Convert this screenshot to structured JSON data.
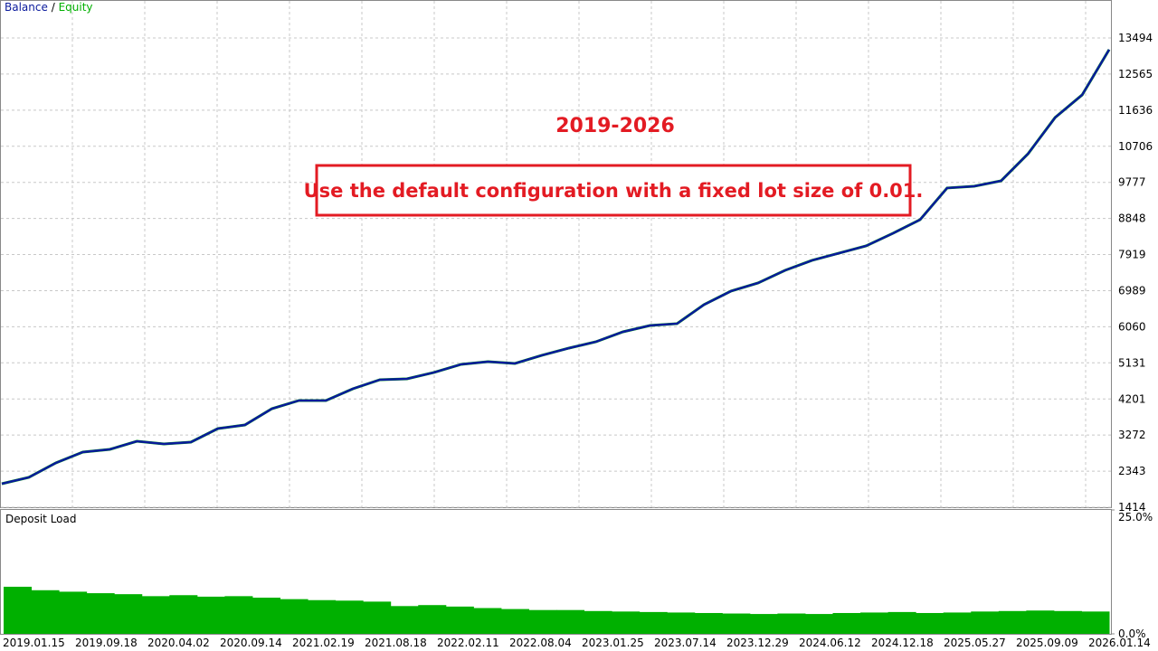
{
  "chart_data": [
    {
      "type": "line",
      "legend_separator": "/",
      "annotations": [
        "2019-2026",
        "Use the default configuration with a fixed lot size of 0.01."
      ],
      "xlabels": [
        "2019.01.15",
        "2019.09.18",
        "2020.04.02",
        "2020.09.14",
        "2021.02.19",
        "2021.08.18",
        "2022.02.11",
        "2022.08.04",
        "2023.01.25",
        "2023.07.14",
        "2023.12.29",
        "2024.06.12",
        "2024.12.18",
        "2025.05.27",
        "2025.09.09",
        "2026.01.14"
      ],
      "ylim": [
        1414,
        14472
      ],
      "yticks": [
        1414,
        2343,
        3272,
        4201,
        5131,
        6060,
        6989,
        7919,
        8848,
        9777,
        10706,
        11636,
        12565,
        13494
      ],
      "grid": true,
      "series": [
        {
          "name": "Equity",
          "color": "#00b000",
          "values": [
            2019,
            2182,
            2555,
            2834,
            2904,
            3113,
            3044,
            3090,
            3439,
            3532,
            3951,
            4161,
            4161,
            4464,
            4696,
            4720,
            4883,
            5092,
            5162,
            5115,
            5325,
            5511,
            5674,
            5930,
            6093,
            6140,
            6629,
            6978,
            7187,
            7513,
            7769,
            7955,
            8142,
            8468,
            8817,
            9632,
            9678,
            9818,
            10516,
            11447,
            12029,
            13194
          ]
        },
        {
          "name": "Balance",
          "color": "#0a1a9c",
          "values": [
            2019,
            2182,
            2555,
            2834,
            2904,
            3113,
            3044,
            3090,
            3439,
            3532,
            3951,
            4161,
            4161,
            4464,
            4696,
            4720,
            4883,
            5092,
            5162,
            5115,
            5325,
            5511,
            5674,
            5930,
            6093,
            6140,
            6629,
            6978,
            7187,
            7513,
            7769,
            7955,
            8142,
            8468,
            8817,
            9632,
            9678,
            9818,
            10516,
            11447,
            12029,
            13194
          ]
        }
      ]
    },
    {
      "type": "bar",
      "title": "Deposit Load",
      "color": "#00b000",
      "ylim": [
        0,
        25
      ],
      "yticks": [
        {
          "value": 0,
          "label": "0.0%"
        },
        {
          "value": 25,
          "label": "25.0%"
        }
      ],
      "values": [
        9.5,
        8.8,
        8.5,
        8.2,
        8,
        7.6,
        7.8,
        7.5,
        7.6,
        7.3,
        7,
        6.8,
        6.7,
        6.5,
        5.6,
        5.8,
        5.5,
        5.2,
        5,
        4.8,
        4.8,
        4.6,
        4.5,
        4.4,
        4.3,
        4.2,
        4.1,
        4,
        4.1,
        4,
        4.2,
        4.3,
        4.4,
        4.2,
        4.3,
        4.5,
        4.6,
        4.7,
        4.6,
        4.5
      ]
    }
  ]
}
